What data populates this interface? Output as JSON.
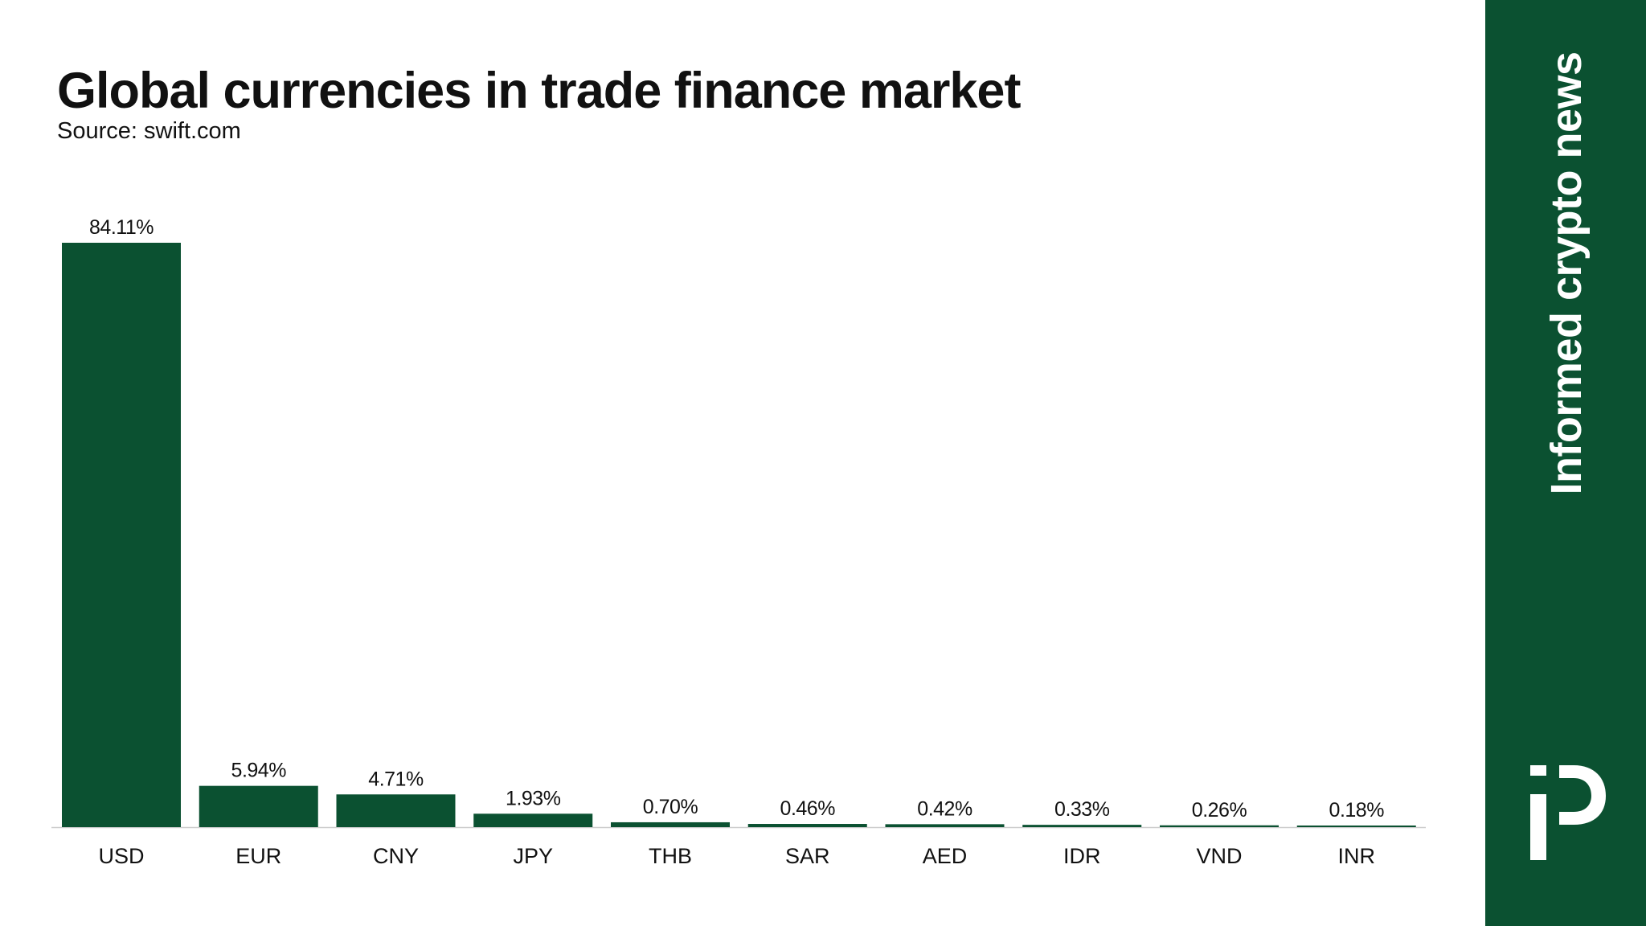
{
  "header": {
    "title": "Global currencies in trade finance market",
    "subtitle": "Source: swift.com"
  },
  "brand": {
    "tagline": "Informed crypto news",
    "logo_icon": "ip-monogram-icon"
  },
  "colors": {
    "bar": "#0b5131",
    "sidebar": "#0b5131",
    "text": "#111111",
    "baseline": "#cccccc"
  },
  "chart_data": {
    "type": "bar",
    "categories": [
      "USD",
      "EUR",
      "CNY",
      "JPY",
      "THB",
      "SAR",
      "AED",
      "IDR",
      "VND",
      "INR"
    ],
    "values": [
      84.11,
      5.94,
      4.71,
      1.93,
      0.7,
      0.46,
      0.42,
      0.33,
      0.26,
      0.18
    ],
    "value_labels": [
      "84.11%",
      "5.94%",
      "4.71%",
      "1.93%",
      "0.70%",
      "0.46%",
      "0.42%",
      "0.33%",
      "0.26%",
      "0.18%"
    ],
    "title": "Global currencies in trade finance market",
    "subtitle": "Source: swift.com",
    "xlabel": "",
    "ylabel": "",
    "ylim": [
      0,
      84.11
    ],
    "grid": false,
    "legend": "none"
  }
}
